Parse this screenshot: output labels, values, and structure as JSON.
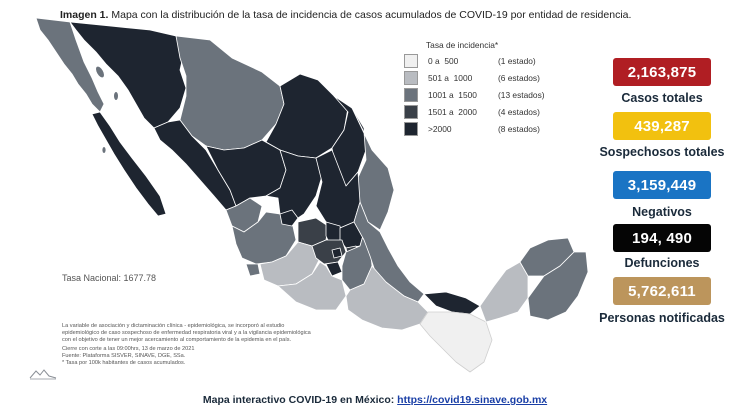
{
  "title": {
    "prefix": "Imagen 1.",
    "text": "Mapa con la distribución de la tasa de incidencia de casos acumulados de COVID-19 por entidad de residencia."
  },
  "legend": {
    "title": "Tasa de incidencia*",
    "rows": [
      {
        "from": "0 a",
        "to": "500",
        "count": "(1 estado)",
        "color": "#f0f0f0"
      },
      {
        "from": "501 a",
        "to": "1000",
        "count": "(6 estados)",
        "color": "#b9bcc1"
      },
      {
        "from": "1001 a",
        "to": "1500",
        "count": "(13 estados)",
        "color": "#6b737c"
      },
      {
        "from": "1501 a",
        "to": "2000",
        "count": "(4 estados)",
        "color": "#3a4048"
      },
      {
        "from": ">2000",
        "to": "",
        "count": "(8 estados)",
        "color": "#1e2530"
      }
    ]
  },
  "tasa_nacional": "Tasa Nacional: 1677.78",
  "notes": [
    "La variable de asociación y dictaminación clínica - epidemiológica, se incorporó al estudio",
    "epidemiológico de caso sospechoso de enfermedad respiratoria viral y a la vigilancia epidemiológica",
    "con el objetivo de tener un mejor acercamiento al comportamiento de la epidemia en el país.",
    "Cierre con corte a las 09:00hrs, 13 de marzo de 2021",
    "Fuente: Plataforma SISVER, SINAVE, DGE, SSa.",
    "* Tasa por 100k habitantes de casos acumulados."
  ],
  "stats": [
    {
      "value": "2,163,875",
      "label": "Casos totales",
      "color": "#b01e23"
    },
    {
      "value": "439,287",
      "label": "Sospechosos totales",
      "color": "#f2c10f"
    },
    {
      "value": "3,159,449",
      "label": "Negativos",
      "color": "#1a74c4"
    },
    {
      "value": "194, 490",
      "label": "Defunciones",
      "color": "#050505"
    },
    {
      "value": "5,762,611",
      "label": "Personas notificadas",
      "color": "#bc955c"
    }
  ],
  "footer": {
    "text": "Mapa interactivo COVID-19 en México: ",
    "link": "https://covid19.sinave.gob.mx"
  },
  "map": {
    "colors": {
      "lightest": "#f0f0f0",
      "light": "#b9bcc1",
      "medium": "#6b737c",
      "dark": "#3a4048",
      "darkest": "#1e2530"
    }
  }
}
